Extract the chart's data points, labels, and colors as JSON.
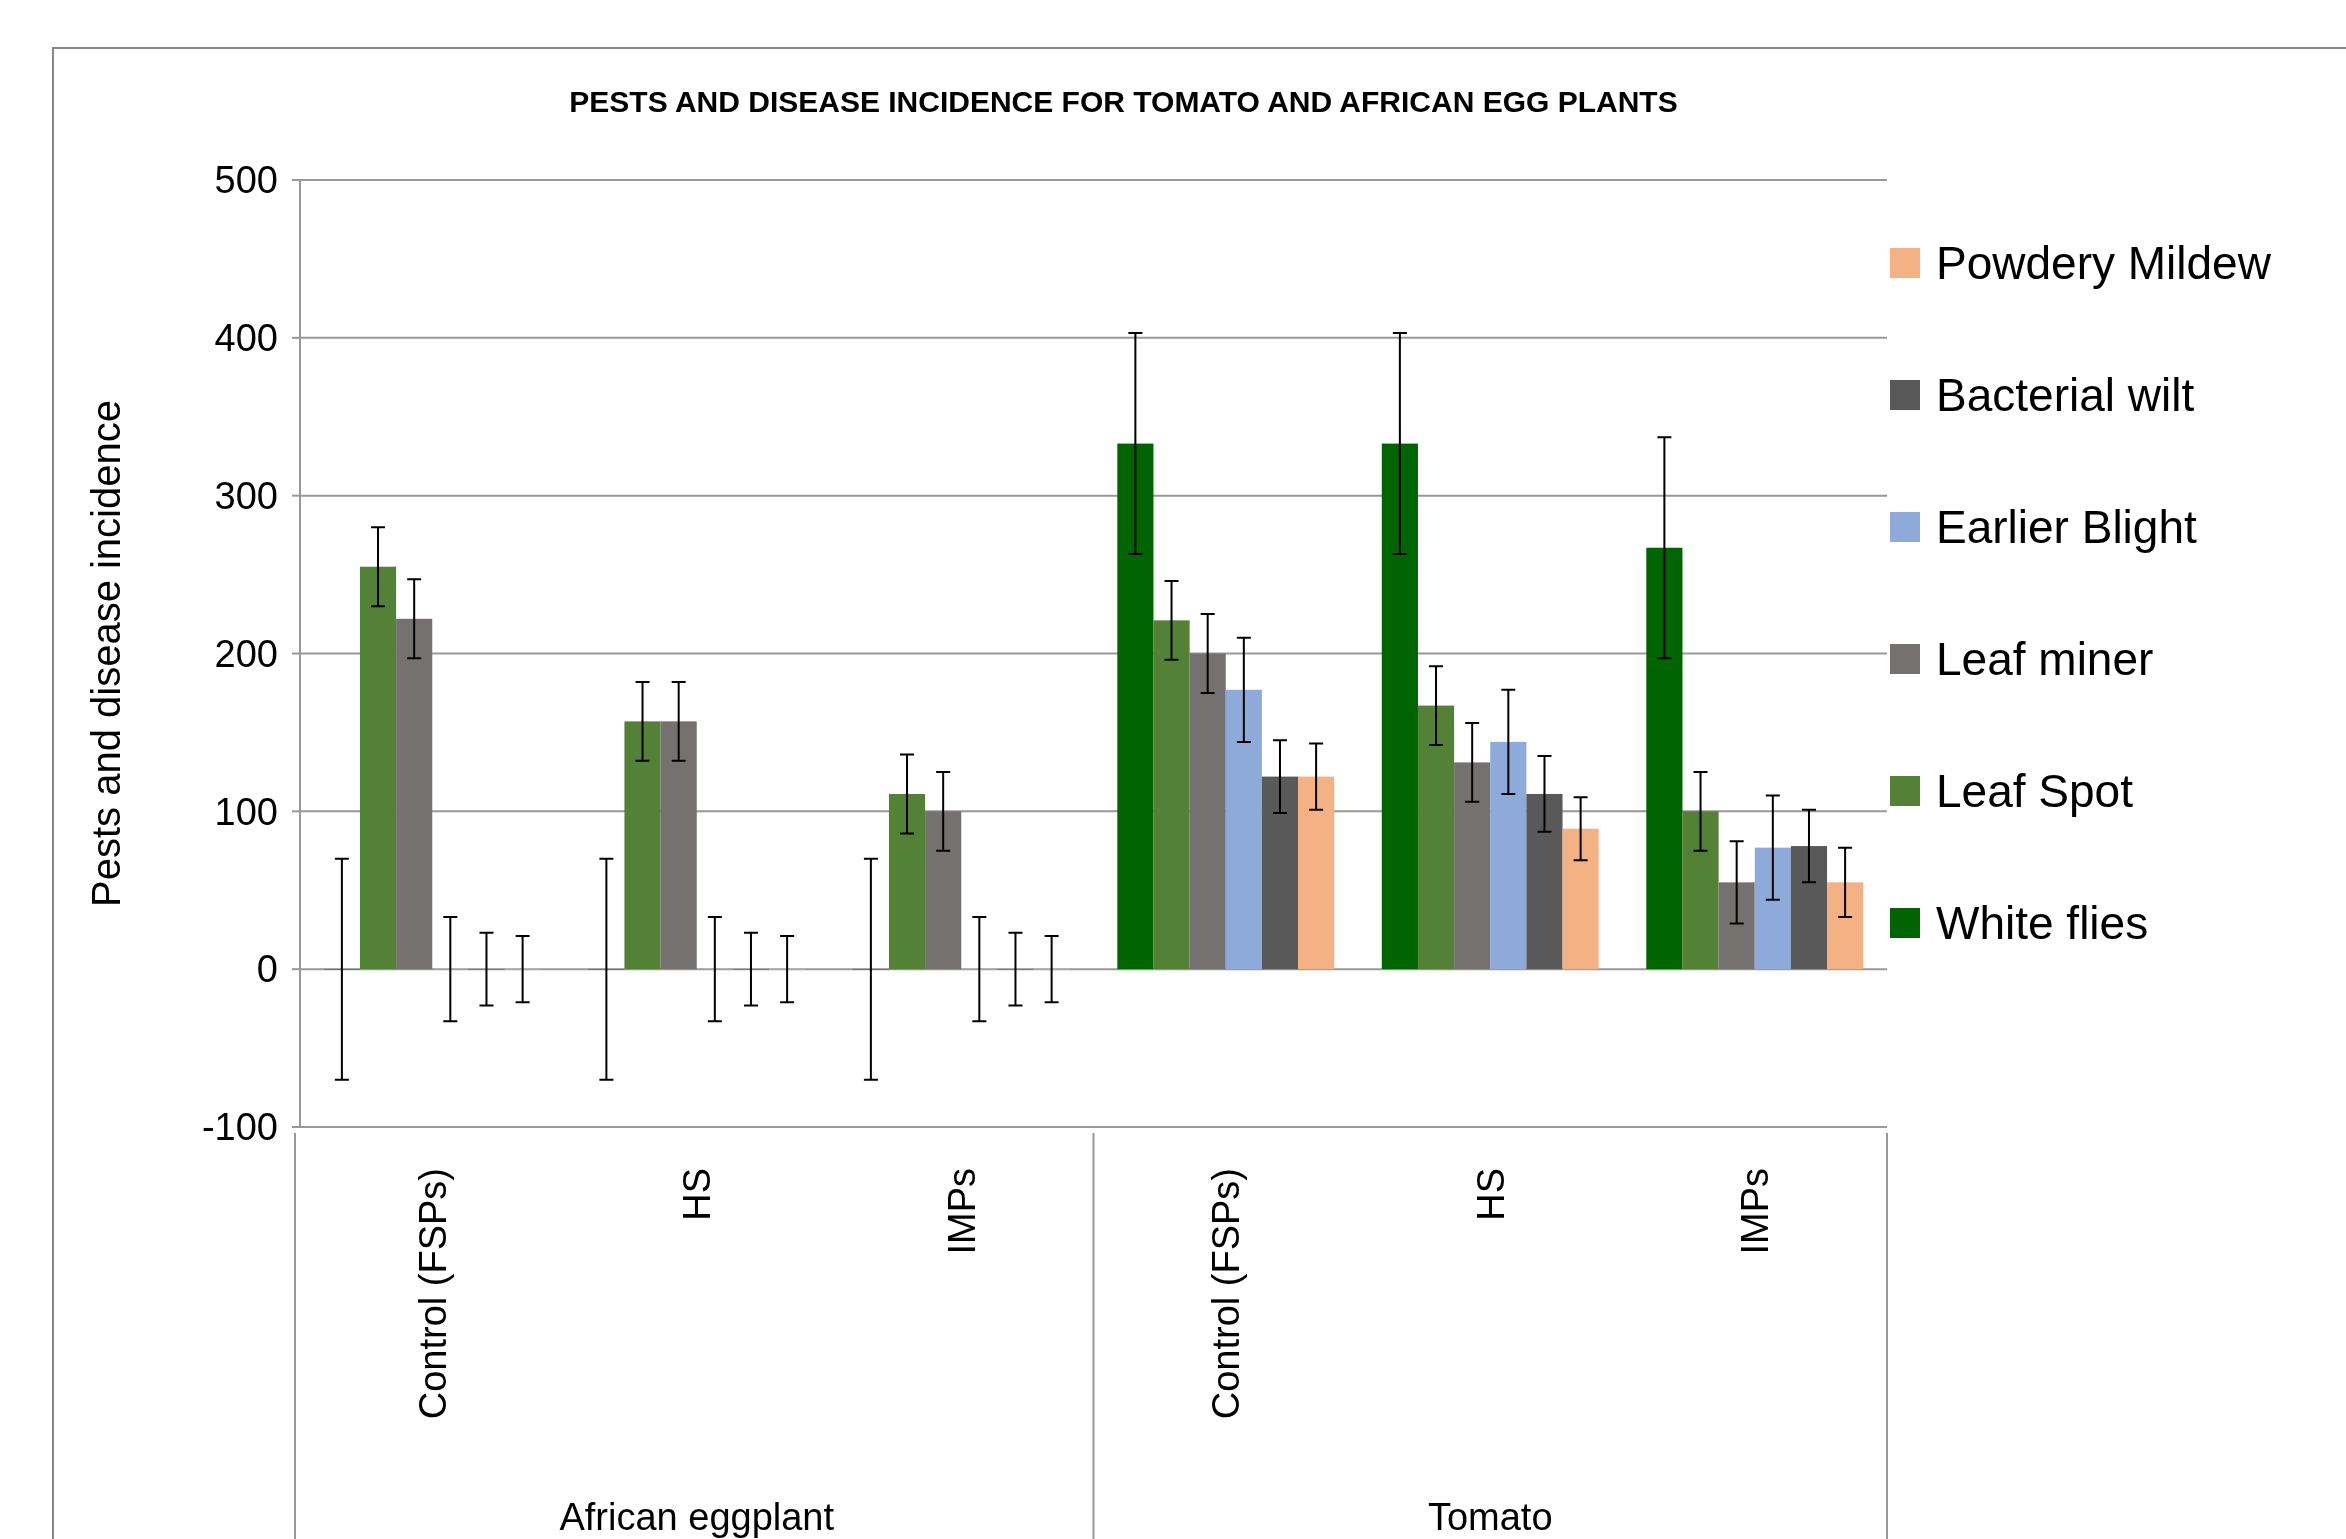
{
  "chart_data": {
    "type": "bar",
    "title": "PESTS AND DISEASE INCIDENCE FOR TOMATO AND AFRICAN EGG PLANTS",
    "ylabel": "Pests and disease incidence",
    "categories": [
      "Control (FSPs)",
      "HS",
      "IMPs",
      "Control (FSPs)",
      "HS",
      "IMPs"
    ],
    "annotations": [
      "African eggplant",
      "Tomato"
    ],
    "series": [
      {
        "name": "White flies",
        "color": "#006400",
        "values": [
          0,
          0,
          0,
          333,
          333,
          267
        ],
        "errors": [
          70,
          70,
          70,
          70,
          70,
          70
        ]
      },
      {
        "name": "Leaf Spot",
        "color": "#538135",
        "values": [
          255,
          157,
          111,
          221,
          167,
          100
        ],
        "errors": [
          25,
          25,
          25,
          25,
          25,
          25
        ]
      },
      {
        "name": "Leaf miner",
        "color": "#767171",
        "values": [
          222,
          157,
          100,
          200,
          131,
          55
        ],
        "errors": [
          25,
          25,
          25,
          25,
          25,
          26
        ]
      },
      {
        "name": "Earlier Blight",
        "color": "#8eaadb",
        "values": [
          0,
          0,
          0,
          177,
          144,
          77
        ],
        "errors": [
          33,
          33,
          33,
          33,
          33,
          33
        ]
      },
      {
        "name": "Bacterial wilt",
        "color": "#595959",
        "values": [
          0,
          0,
          0,
          122,
          111,
          78
        ],
        "errors": [
          23,
          23,
          23,
          23,
          24,
          23
        ]
      },
      {
        "name": "Powdery Mildew",
        "color": "#f4b183",
        "values": [
          0,
          0,
          0,
          122,
          89,
          55
        ],
        "errors": [
          21,
          21,
          21,
          21,
          20,
          22
        ]
      }
    ],
    "ylim": [
      -100,
      500
    ],
    "yticks": [
      -100,
      0,
      100,
      200,
      300,
      400,
      500
    ],
    "grid": "y",
    "legend": "right"
  }
}
